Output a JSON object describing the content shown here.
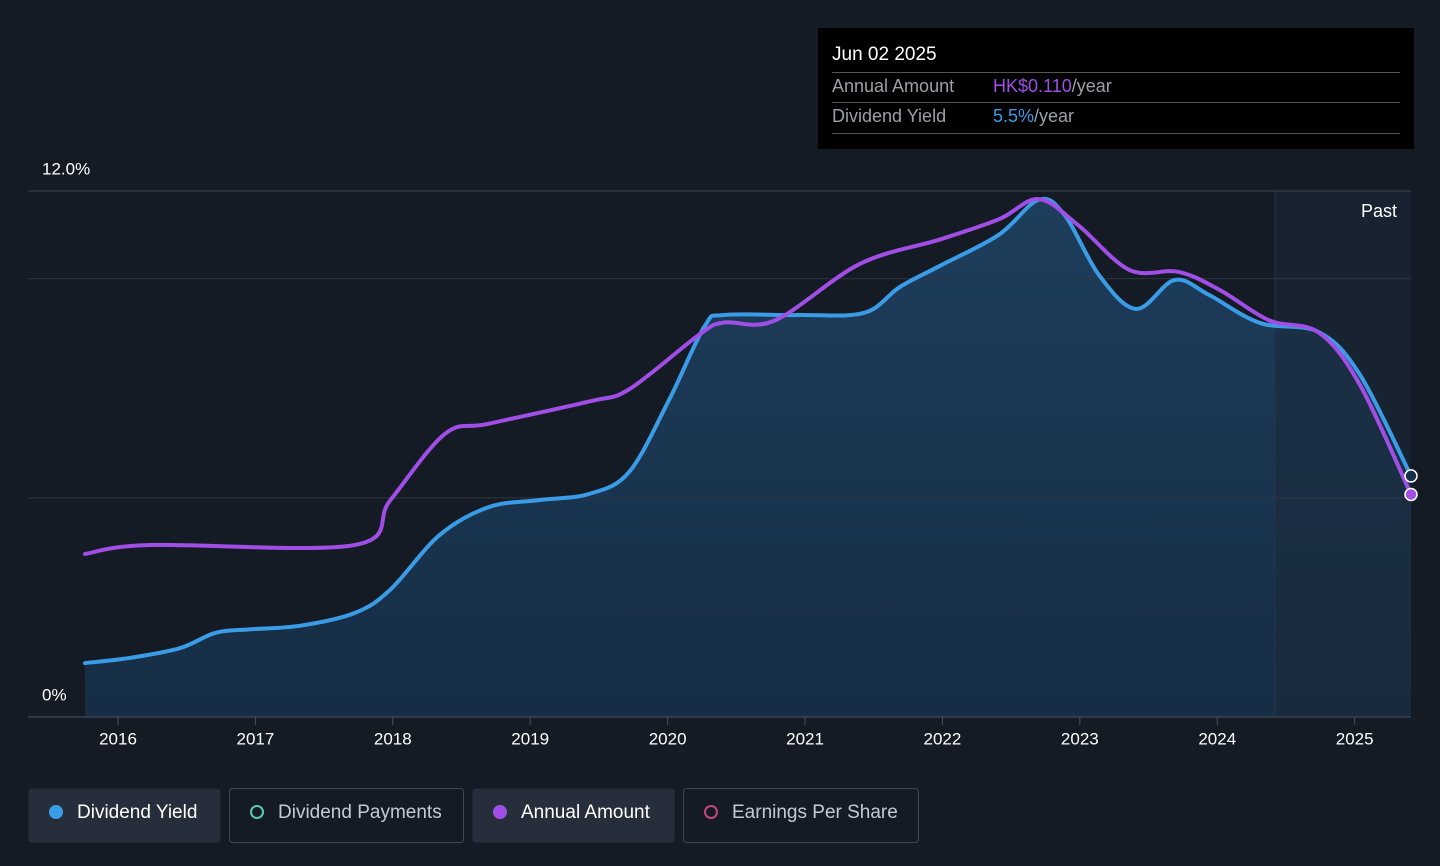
{
  "chart_data": {
    "type": "line",
    "xlim": [
      2015.345,
      2025.41
    ],
    "xticks": [
      2016,
      2017,
      2018,
      2019,
      2020,
      2021,
      2022,
      2023,
      2024,
      2025
    ],
    "ylim": [
      0,
      12
    ],
    "yticks": [
      {
        "value": 12,
        "label": "12.0%"
      },
      {
        "value": 0,
        "label": "0%"
      }
    ],
    "grid_lines": [
      5,
      10
    ],
    "y2lim": [
      0,
      0.26
    ],
    "past_region_start": 2024.42,
    "past_label": "Past",
    "series": [
      {
        "name": "Dividend Yield",
        "color": "#3a9ce6",
        "area": true,
        "x": [
          2015.76,
          2016.09,
          2016.45,
          2016.71,
          2016.96,
          2017.32,
          2017.72,
          2017.98,
          2018.34,
          2018.7,
          2019.07,
          2019.43,
          2019.72,
          2020.01,
          2020.27,
          2020.41,
          2020.96,
          2021.43,
          2021.69,
          2021.98,
          2022.41,
          2022.7,
          2022.89,
          2023.14,
          2023.41,
          2023.69,
          2023.94,
          2024.31,
          2024.74,
          2025.04,
          2025.41
        ],
        "values": [
          1.23,
          1.35,
          1.57,
          1.92,
          2.0,
          2.08,
          2.37,
          2.9,
          4.15,
          4.79,
          4.95,
          5.09,
          5.59,
          7.23,
          8.92,
          9.17,
          9.17,
          9.22,
          9.81,
          10.29,
          11.0,
          11.8,
          11.45,
          10.08,
          9.31,
          9.97,
          9.63,
          8.99,
          8.78,
          7.8,
          5.5
        ]
      },
      {
        "name": "Annual Amount",
        "color": "#a04ee6",
        "axis": "y2",
        "x": [
          2015.76,
          2016.23,
          2017.72,
          2017.98,
          2018.38,
          2018.7,
          2019.43,
          2019.72,
          2020.23,
          2020.41,
          2020.78,
          2021.4,
          2021.98,
          2022.41,
          2022.7,
          2022.99,
          2023.36,
          2023.72,
          2024.02,
          2024.38,
          2024.74,
          2025.04,
          2025.41
        ],
        "values": [
          0.0806,
          0.085,
          0.085,
          0.107,
          0.14,
          0.145,
          0.156,
          0.162,
          0.189,
          0.195,
          0.196,
          0.224,
          0.236,
          0.246,
          0.256,
          0.243,
          0.221,
          0.22,
          0.211,
          0.196,
          0.19,
          0.164,
          0.11
        ]
      }
    ],
    "tooltip": {
      "date": "Jun 02 2025",
      "rows": [
        {
          "series": 1,
          "value": 0.11,
          "value_label": "HK$0.110",
          "unit": "/year"
        },
        {
          "series": 0,
          "value": 5.5,
          "value_label": "5.5%",
          "unit": "/year"
        }
      ]
    },
    "other_legend_items": [
      {
        "name": "Dividend Payments",
        "color": "#5cc6b6"
      },
      {
        "name": "Earnings Per Share",
        "color": "#c2467c"
      }
    ]
  }
}
